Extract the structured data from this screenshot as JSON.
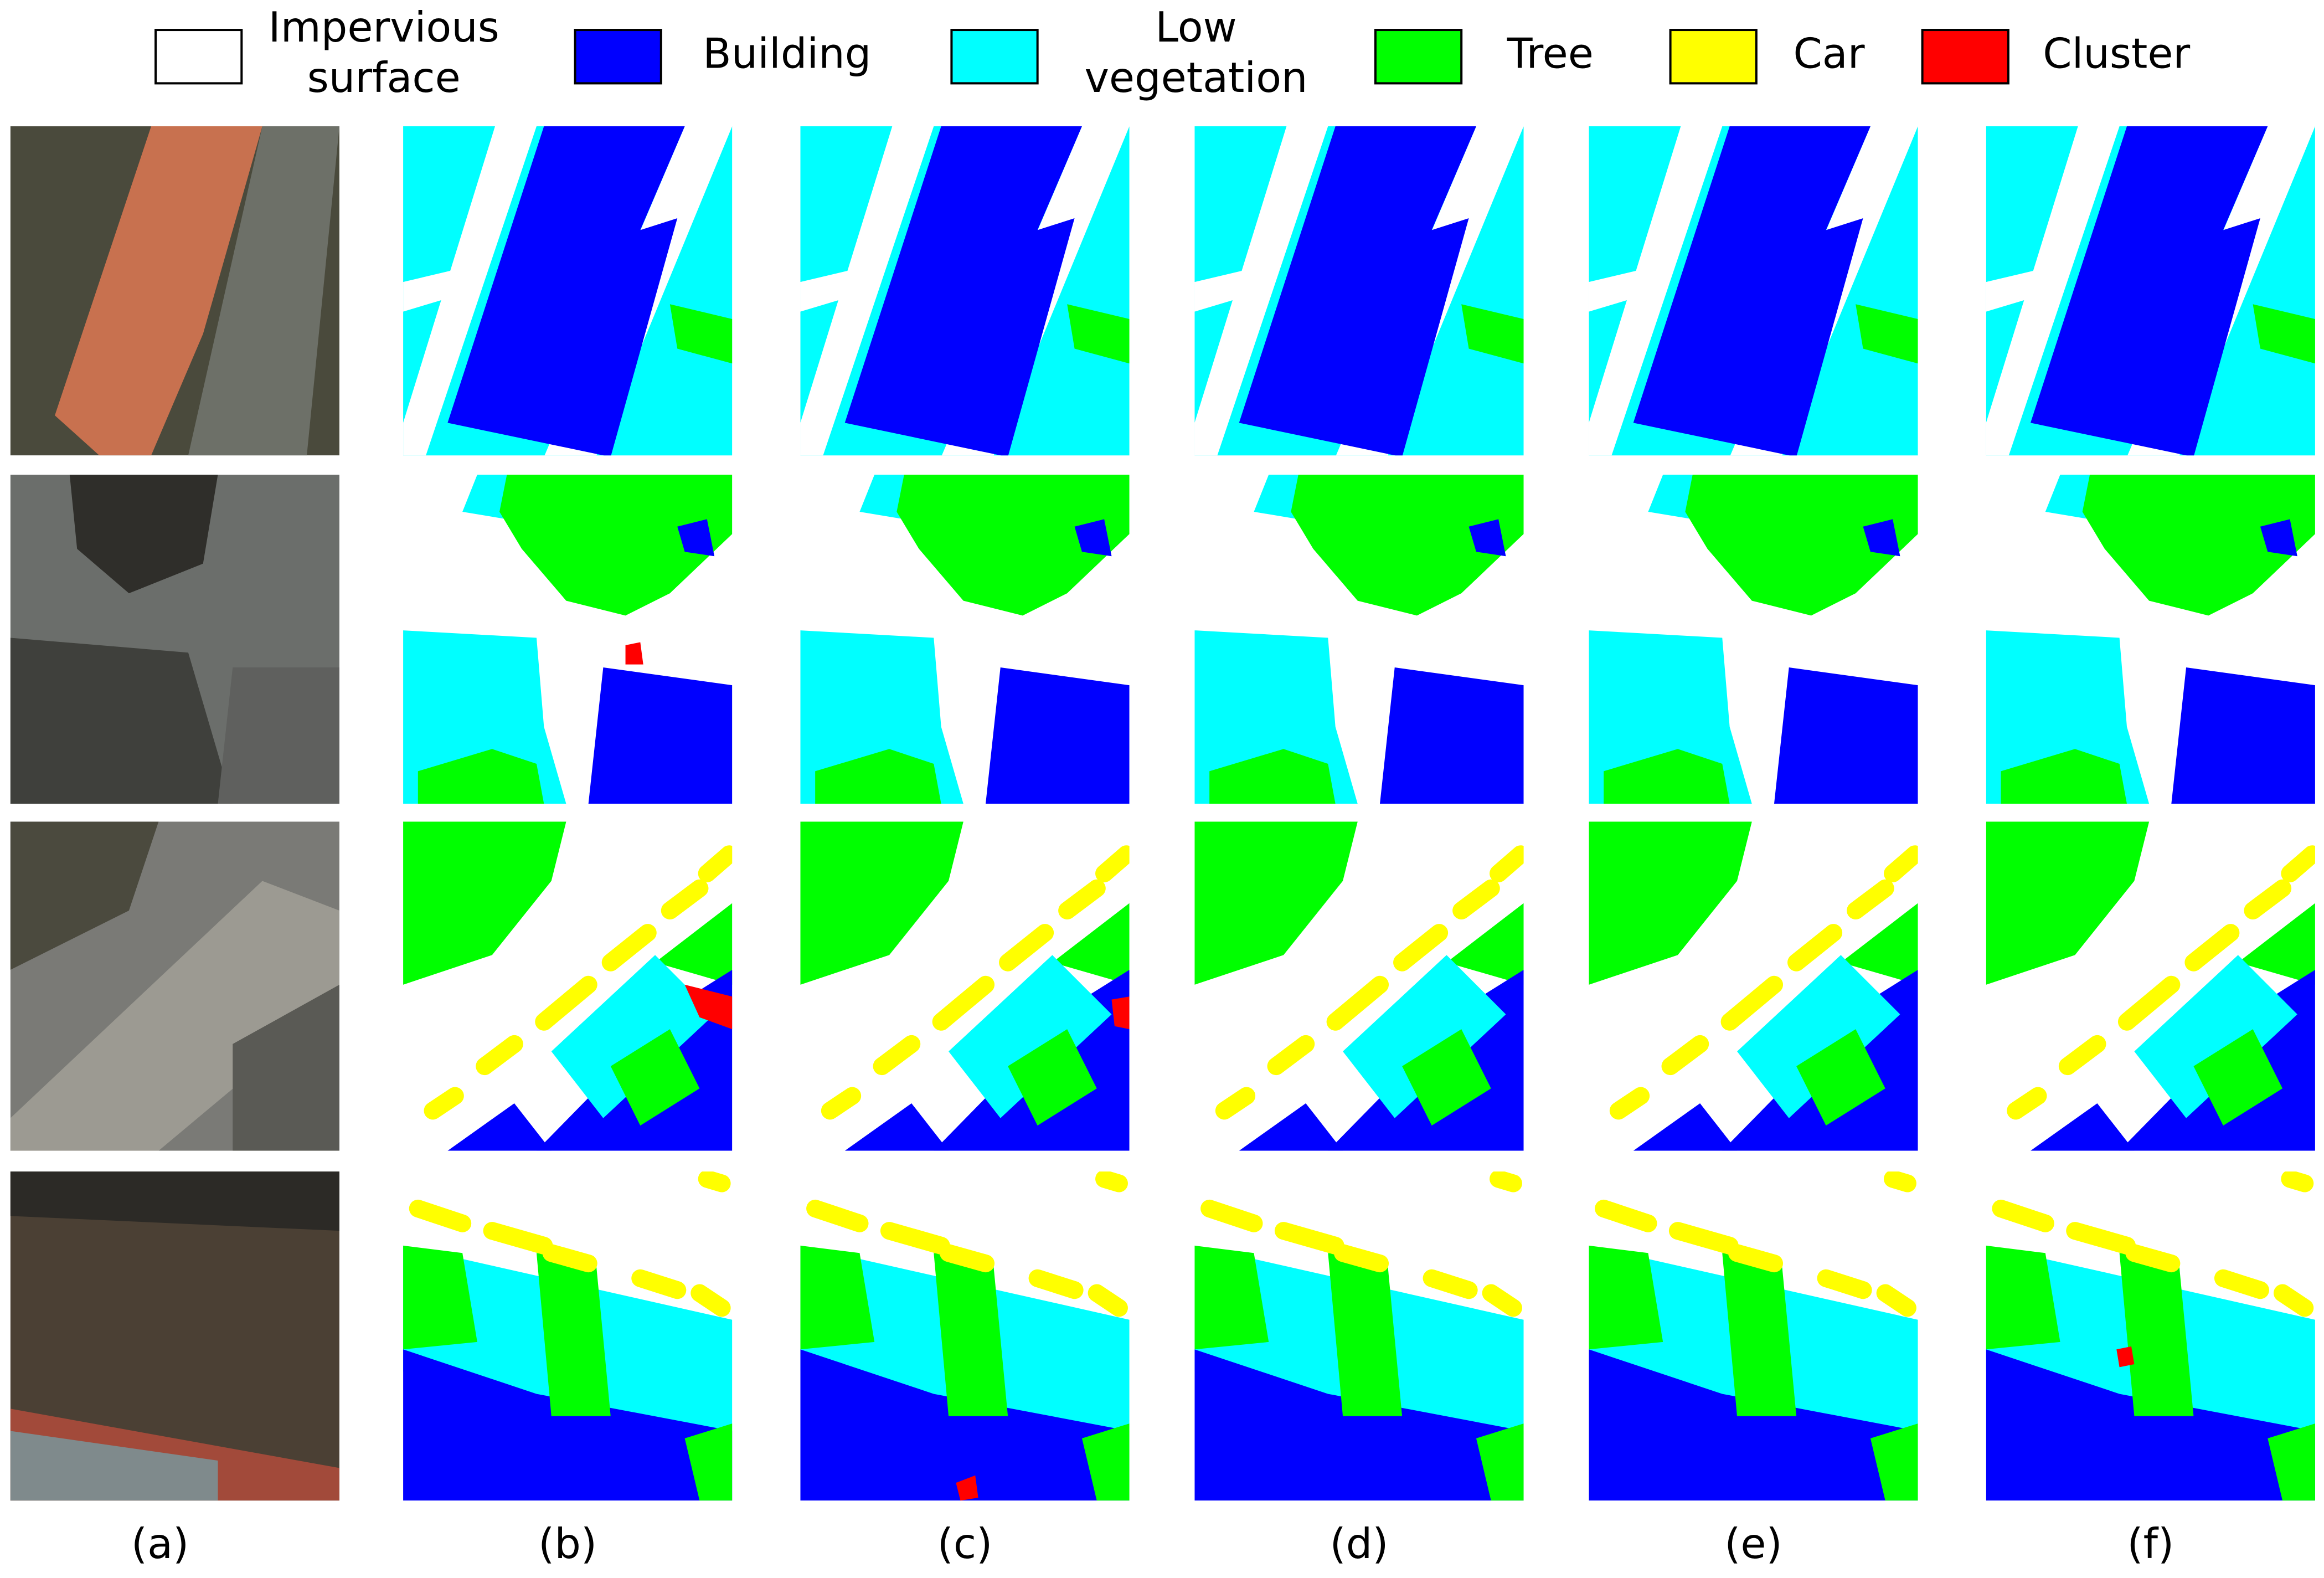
{
  "legend": [
    {
      "label": "Impervious surface",
      "color": "#ffffff"
    },
    {
      "label": "Building",
      "color": "#0000ff"
    },
    {
      "label": "Low vegetation",
      "color": "#00ffff"
    },
    {
      "label": "Tree",
      "color": "#00ff00"
    },
    {
      "label": "Car",
      "color": "#ffff00"
    },
    {
      "label": "Cluster",
      "color": "#ff0000"
    }
  ],
  "columns": [
    "(a)",
    "(b)",
    "(c)",
    "(d)",
    "(e)",
    "(f)"
  ]
}
